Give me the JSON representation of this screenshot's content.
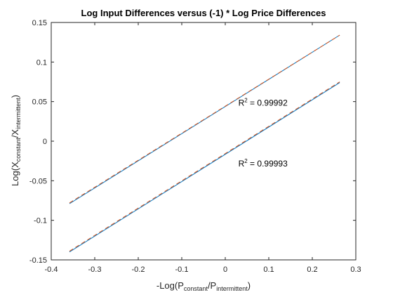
{
  "chart_data": {
    "type": "line",
    "title": "Log Input Differences versus (-1) * Log Price Differences",
    "xlabel": {
      "base": "-Log(P",
      "sub1": "constant",
      "mid": "/P",
      "sub2": "intermittent",
      "end": ")"
    },
    "ylabel": {
      "base": "Log(X",
      "sub1": "constant",
      "mid": "/X",
      "sub2": "intermittent",
      "end": ")"
    },
    "xlim": [
      -0.4,
      0.3
    ],
    "ylim": [
      -0.15,
      0.15
    ],
    "xticks": [
      -0.4,
      -0.3,
      -0.2,
      -0.1,
      0,
      0.1,
      0.2,
      0.3
    ],
    "yticks": [
      -0.15,
      -0.1,
      -0.05,
      0,
      0.05,
      0.1,
      0.15
    ],
    "xtick_labels": [
      "-0.4",
      "-0.3",
      "-0.2",
      "-0.1",
      "0",
      "0.1",
      "0.2",
      "0.3"
    ],
    "ytick_labels": [
      "-0.15",
      "-0.1",
      "-0.05",
      "0",
      "0.05",
      "0.1",
      "0.15"
    ],
    "grid": false,
    "series": [
      {
        "style": "solid",
        "color": "#0072BD",
        "x": [
          -0.358,
          0.263
        ],
        "y": [
          -0.079,
          0.134
        ]
      },
      {
        "style": "dashed",
        "color": "#D95319",
        "x": [
          -0.358,
          0.263
        ],
        "y": [
          -0.078,
          0.134
        ]
      },
      {
        "style": "solid",
        "color": "#0072BD",
        "x": [
          -0.358,
          0.263
        ],
        "y": [
          -0.14,
          0.074
        ]
      },
      {
        "style": "dashed",
        "color": "#D95319",
        "x": [
          -0.358,
          0.263
        ],
        "y": [
          -0.139,
          0.075
        ]
      }
    ],
    "annotations": [
      {
        "label": "R",
        "sup": "2",
        "value": " = 0.99992",
        "x": 0.03,
        "y": 0.045
      },
      {
        "label": "R",
        "sup": "2",
        "value": " = 0.99993",
        "x": 0.03,
        "y": -0.032
      }
    ]
  }
}
